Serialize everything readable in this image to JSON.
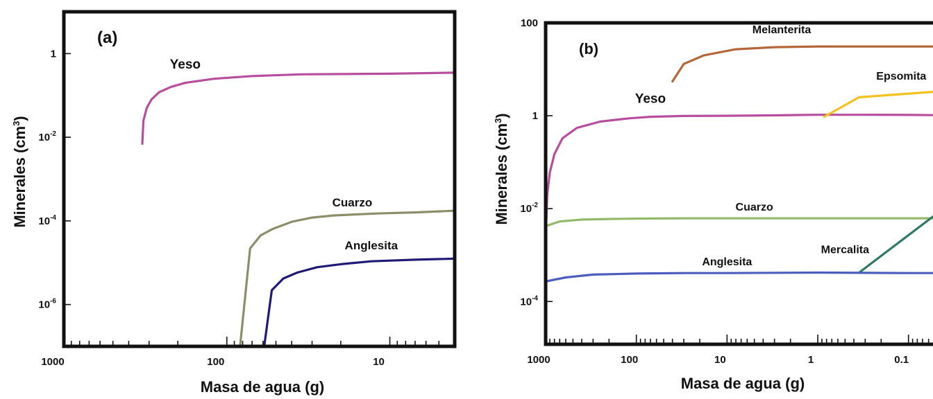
{
  "chart_data": [
    {
      "type": "line",
      "panel_label": "(a)",
      "xlabel": "Masa de agua (g)",
      "ylabel_main": "Minerales (cm",
      "ylabel_sup": "3",
      "ylabel_end": ")",
      "xscale": "log",
      "x_reversed": true,
      "xlim": [
        1000,
        4
      ],
      "yscale": "log",
      "ylim": [
        1e-07,
        10
      ],
      "x_ticks": [
        {
          "value": 1000,
          "label": "1000"
        },
        {
          "value": 100,
          "label": "100"
        },
        {
          "value": 10,
          "label": "10"
        }
      ],
      "y_ticks": [
        {
          "value": 1,
          "base": "1",
          "exp": ""
        },
        {
          "value": 0.01,
          "base": "10",
          "exp": "-2"
        },
        {
          "value": 0.0001,
          "base": "10",
          "exp": "-4"
        },
        {
          "value": 1e-06,
          "base": "10",
          "exp": "-6"
        }
      ],
      "series": [
        {
          "name": "Yeso",
          "color": "#b84d9e",
          "x": [
            330,
            325,
            310,
            290,
            260,
            220,
            180,
            120,
            70,
            35,
            10,
            4
          ],
          "y": [
            0.007,
            0.025,
            0.05,
            0.08,
            0.12,
            0.16,
            0.2,
            0.25,
            0.29,
            0.32,
            0.33,
            0.35
          ]
        },
        {
          "name": "Cuarzo",
          "color": "#8c8e6a",
          "x": [
            83,
            72,
            62,
            52,
            40,
            30,
            22,
            12,
            7,
            4
          ],
          "y": [
            1e-07,
            2.2e-05,
            4.5e-05,
            6.5e-05,
            9.5e-05,
            0.00012,
            0.000135,
            0.00015,
            0.00016,
            0.000175
          ],
          "label_x": 17,
          "label_y": 0.00022
        },
        {
          "name": "Anglesita",
          "color": "#1f1a78",
          "x": [
            59,
            53,
            45,
            37,
            28,
            20,
            13,
            7,
            4
          ],
          "y": [
            1e-07,
            2.2e-06,
            4.2e-06,
            5.8e-06,
            7.8e-06,
            9.2e-06,
            1.08e-05,
            1.18e-05,
            1.25e-05
          ],
          "label_x": 13,
          "label_y": 2.1e-05
        }
      ]
    },
    {
      "type": "line",
      "panel_label": "(b)",
      "xlabel": "Masa de agua (g)",
      "ylabel_main": "Minerales (cm",
      "ylabel_sup": "3",
      "ylabel_end": ")",
      "xscale": "log",
      "x_reversed": true,
      "xlim": [
        1000,
        0.05
      ],
      "yscale": "log",
      "ylim": [
        1.2e-05,
        100
      ],
      "x_ticks": [
        {
          "value": 1000,
          "label": "1000"
        },
        {
          "value": 100,
          "label": "100"
        },
        {
          "value": 10,
          "label": "10"
        },
        {
          "value": 1,
          "label": "1"
        },
        {
          "value": 0.1,
          "label": "0.1"
        }
      ],
      "y_ticks": [
        {
          "value": 100,
          "base": "100",
          "exp": ""
        },
        {
          "value": 1,
          "base": "1",
          "exp": ""
        },
        {
          "value": 0.01,
          "base": "10",
          "exp": "-2"
        },
        {
          "value": 0.0001,
          "base": "10",
          "exp": "-4"
        }
      ],
      "series": [
        {
          "name": "Melanterita",
          "color": "#b5663a",
          "x": [
            40,
            30,
            18,
            8,
            3,
            1,
            0.3,
            0.05
          ],
          "y": [
            5.5,
            13,
            20,
            27,
            30,
            31,
            31,
            31
          ],
          "label_x": 2.5,
          "label_y": 60
        },
        {
          "name": "Yeso",
          "color": "#b84d9e",
          "x": [
            980,
            960,
            900,
            800,
            650,
            450,
            250,
            120,
            70,
            30,
            10,
            3,
            1,
            0.3,
            0.1,
            0.05
          ],
          "y": [
            0.006,
            0.02,
            0.06,
            0.15,
            0.33,
            0.55,
            0.75,
            0.88,
            0.95,
            0.99,
            1.0,
            1.02,
            1.05,
            1.05,
            1.04,
            1.03
          ],
          "label_x": 70,
          "label_y": 1.9
        },
        {
          "name": "Epsomita",
          "color": "#f2c11c",
          "x": [
            0.85,
            0.35,
            0.05
          ],
          "y": [
            0.95,
            2.5,
            3.3
          ],
          "label_x": 0.12,
          "label_y": 6
        },
        {
          "name": "Cuarzo",
          "color": "#93b96b",
          "x": [
            1000,
            700,
            400,
            200,
            100,
            30,
            10,
            1,
            0.1,
            0.05
          ],
          "y": [
            0.0042,
            0.0053,
            0.0058,
            0.006,
            0.0061,
            0.0062,
            0.0062,
            0.0062,
            0.0062,
            0.0062
          ],
          "label_x": 5,
          "label_y": 0.009
        },
        {
          "name": "Mercalita",
          "color": "#2c7a66",
          "x": [
            0.35,
            0.05
          ],
          "y": [
            0.00042,
            0.0075
          ],
          "label_x": 0.5,
          "label_y": 0.0011
        },
        {
          "name": "Anglesita",
          "color": "#4a5dbf",
          "x": [
            1000,
            600,
            300,
            100,
            30,
            10,
            1,
            0.1,
            0.05
          ],
          "y": [
            0.00027,
            0.00033,
            0.00038,
            0.0004,
            0.00041,
            0.00041,
            0.00042,
            0.00041,
            0.00041
          ],
          "label_x": 10,
          "label_y": 0.0006
        }
      ]
    }
  ]
}
